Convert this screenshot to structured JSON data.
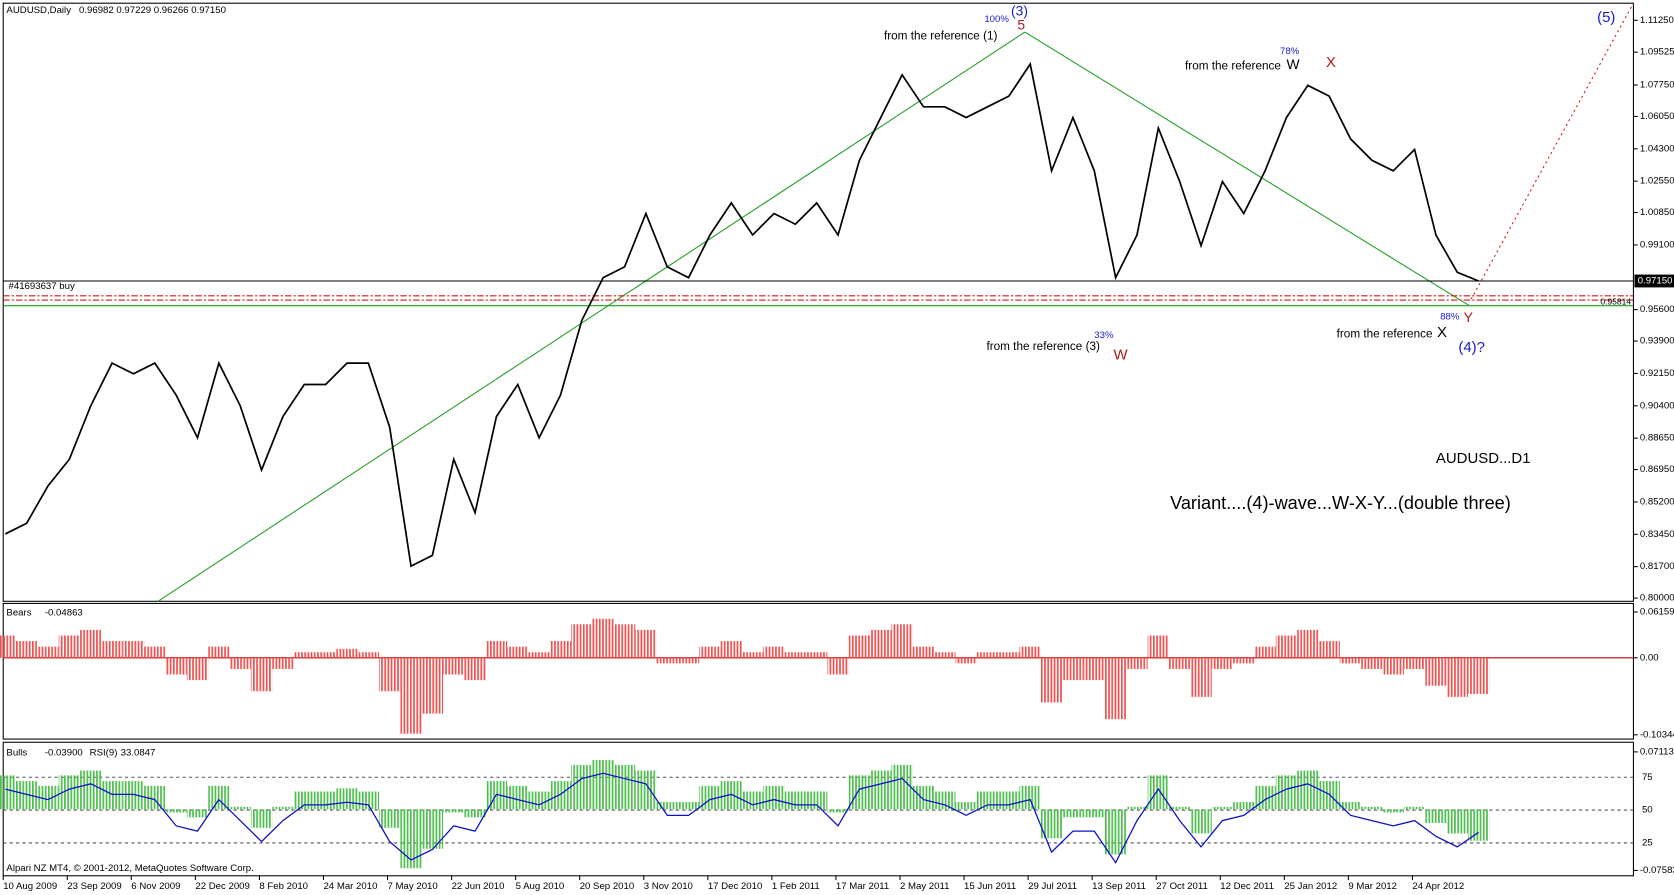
{
  "chart_data": [
    {
      "type": "line",
      "title": "AUDUSD,Daily",
      "ohlc": "0.96982 0.97229 0.96266 0.97150",
      "footer": "Alpari NZ MT4, © 2001-2012, MetaQuotes Software Corp.",
      "color": "#000000",
      "categories": [
        "10 Aug 2009",
        null,
        null,
        "23 Sep 2009",
        null,
        null,
        "6 Nov 2009",
        null,
        null,
        "22 Dec 2009",
        null,
        null,
        "8 Feb 2010",
        null,
        null,
        "24 Mar 2010",
        null,
        null,
        "7 May 2010",
        null,
        null,
        "22 Jun 2010",
        null,
        null,
        "5 Aug 2010",
        null,
        null,
        "20 Sep 2010",
        null,
        null,
        "3 Nov 2010",
        null,
        null,
        "17 Dec 2010",
        null,
        null,
        "1 Feb 2011",
        null,
        null,
        "17 Mar 2011",
        null,
        null,
        "2 May 2011",
        null,
        null,
        "15 Jun 2011",
        null,
        null,
        "29 Jul 2011",
        null,
        null,
        "13 Sep 2011",
        null,
        null,
        "27 Oct 2011",
        null,
        null,
        "12 Dec 2011",
        null,
        null,
        "25 Jan 2012",
        null,
        null,
        "9 Mar 2012",
        null,
        null,
        "24 Apr 2012",
        null,
        null,
        null
      ],
      "values": [
        0.8347,
        0.8405,
        0.8607,
        0.8751,
        0.904,
        0.9271,
        0.9213,
        0.9271,
        0.9098,
        0.8867,
        0.9271,
        0.904,
        0.8693,
        0.8982,
        0.9155,
        0.9155,
        0.9271,
        0.9271,
        0.8924,
        0.8173,
        0.8231,
        0.8751,
        0.8462,
        0.8982,
        0.9155,
        0.8867,
        0.9098,
        0.9502,
        0.9733,
        0.9791,
        1.008,
        0.9791,
        0.9733,
        0.9964,
        1.0137,
        0.9964,
        1.008,
        1.0022,
        1.0137,
        0.9964,
        1.0368,
        1.0599,
        1.083,
        1.0657,
        1.0657,
        1.0599,
        1.0657,
        1.0715,
        1.0888,
        1.0311,
        1.0599,
        1.0311,
        0.9733,
        0.9964,
        1.0542,
        1.0253,
        0.9906,
        1.0253,
        1.008,
        1.0311,
        1.0599,
        1.0773,
        1.0715,
        1.0484,
        1.0368,
        1.0311,
        1.0426,
        0.9964,
        0.9762,
        0.9715
      ],
      "ylim": [
        0.8,
        1.1125
      ],
      "yticks": [
        {
          "value": 1.1125,
          "label": "1.11250"
        },
        1.09525,
        {
          "value": 1.0775,
          "label": "1.07750"
        },
        {
          "value": 1.0605,
          "label": "1.06050"
        },
        {
          "value": 1.043,
          "label": "1.04300"
        },
        {
          "value": 1.0255,
          "label": "1.02550"
        },
        {
          "value": 1.0085,
          "label": "1.00850"
        },
        {
          "value": 0.991,
          "label": "0.99100"
        },
        {
          "value": 0.956,
          "label": "0.95600"
        },
        {
          "value": 0.939,
          "label": "0.93900"
        },
        {
          "value": 0.9215,
          "label": "0.92150"
        },
        {
          "value": 0.904,
          "label": "0.90400"
        },
        {
          "value": 0.8865,
          "label": "0.88650"
        },
        {
          "value": 0.8695,
          "label": "0.86950"
        },
        {
          "value": 0.852,
          "label": "0.85200"
        },
        {
          "value": 0.8345,
          "label": "0.83450"
        },
        {
          "value": 0.817,
          "label": "0.81700"
        },
        {
          "value": 0.8,
          "label": "0.80000"
        }
      ],
      "price_line": {
        "value": 0.9715,
        "label": "0.97150"
      },
      "order_label": "#41693637 buy",
      "stop_lines": [
        0.9635,
        0.9612
      ],
      "target_line": {
        "value": 0.95814,
        "label": "0.95814"
      },
      "annotations": [
        "100%",
        "(3)",
        "5",
        "from the reference (1)",
        "78%",
        "from the reference",
        "W",
        "X",
        "33%",
        "from the reference (3)",
        "W",
        "88%",
        "Y",
        "from the reference",
        "X",
        "(4)?",
        "(5)",
        "AUDUSD...D1",
        "Variant....(4)-wave...W-X-Y...(double three)"
      ]
    },
    {
      "type": "bar",
      "series": [
        {
          "name": "Bears",
          "color": "#f05050",
          "values": [
            0.03,
            0.0225,
            0.015,
            0.03,
            0.0375,
            0.0225,
            0.0225,
            0.015,
            -0.0225,
            -0.03,
            0.015,
            -0.015,
            -0.045,
            -0.015,
            0.0075,
            0.0075,
            0.012,
            0.0075,
            -0.045,
            -0.102,
            -0.075,
            -0.0225,
            -0.03,
            0.0225,
            0.015,
            0.0075,
            0.0225,
            0.045,
            0.0525,
            0.045,
            0.0375,
            -0.0075,
            -0.0075,
            0.015,
            0.0225,
            0.0075,
            0.015,
            0.0075,
            0.0075,
            -0.0225,
            0.03,
            0.0375,
            0.045,
            0.015,
            0.0075,
            -0.0075,
            0.0075,
            0.0075,
            0.015,
            -0.06,
            -0.03,
            -0.03,
            -0.0825,
            -0.015,
            0.03,
            -0.015,
            -0.0525,
            -0.015,
            -0.0075,
            0.015,
            0.03,
            0.0375,
            0.0225,
            -0.0075,
            -0.015,
            -0.0225,
            -0.015,
            -0.0375,
            -0.0525,
            -0.04863
          ]
        }
      ],
      "ylim": [
        -0.10344,
        0.06159
      ],
      "yticks": [
        -0.10344,
        {
          "value": 0,
          "label": "0.00"
        },
        0.06159
      ]
    },
    {
      "type": "bar",
      "series": [
        {
          "name": "Bulls",
          "color": "#4cbf4c",
          "last_label": "-0.03900",
          "values": [
            0.042,
            0.035,
            0.029,
            0.042,
            0.048,
            0.035,
            0.035,
            0.029,
            -0.004,
            -0.01,
            0.029,
            0.003,
            -0.023,
            0.003,
            0.022,
            0.022,
            0.026,
            0.022,
            -0.023,
            -0.073,
            -0.049,
            -0.004,
            -0.01,
            0.035,
            0.029,
            0.022,
            0.035,
            0.055,
            0.061,
            0.055,
            0.048,
            0.009,
            0.009,
            0.029,
            0.035,
            0.022,
            0.029,
            0.022,
            0.022,
            -0.004,
            0.042,
            0.048,
            0.055,
            0.029,
            0.022,
            0.009,
            0.022,
            0.022,
            0.029,
            -0.036,
            -0.01,
            -0.01,
            -0.056,
            0.003,
            0.042,
            0.003,
            -0.03,
            0.003,
            0.009,
            0.029,
            0.042,
            0.048,
            0.035,
            0.009,
            0.003,
            -0.004,
            0.003,
            -0.017,
            -0.03,
            -0.039
          ]
        },
        {
          "name": "RSI(9)",
          "color": "#1010c8",
          "axis": "y2",
          "values": [
            66,
            62,
            58,
            66,
            70,
            62,
            62,
            58,
            38,
            34,
            58,
            42,
            26,
            42,
            54,
            54,
            56,
            54,
            26,
            12,
            20,
            38,
            34,
            62,
            58,
            54,
            62,
            74,
            78,
            74,
            70,
            46,
            46,
            58,
            62,
            54,
            58,
            54,
            54,
            38,
            66,
            70,
            74,
            58,
            54,
            46,
            54,
            54,
            58,
            18,
            34,
            34,
            10,
            42,
            66,
            42,
            22,
            42,
            46,
            58,
            66,
            70,
            62,
            46,
            42,
            38,
            42,
            30,
            22,
            33.0847
          ]
        }
      ],
      "ylim": [
        -0.07583,
        0.07113
      ],
      "yticks": [
        -0.07583,
        0.07113
      ],
      "y2lim": [
        0,
        100
      ],
      "y2ticks": [
        25,
        50,
        75
      ]
    }
  ]
}
